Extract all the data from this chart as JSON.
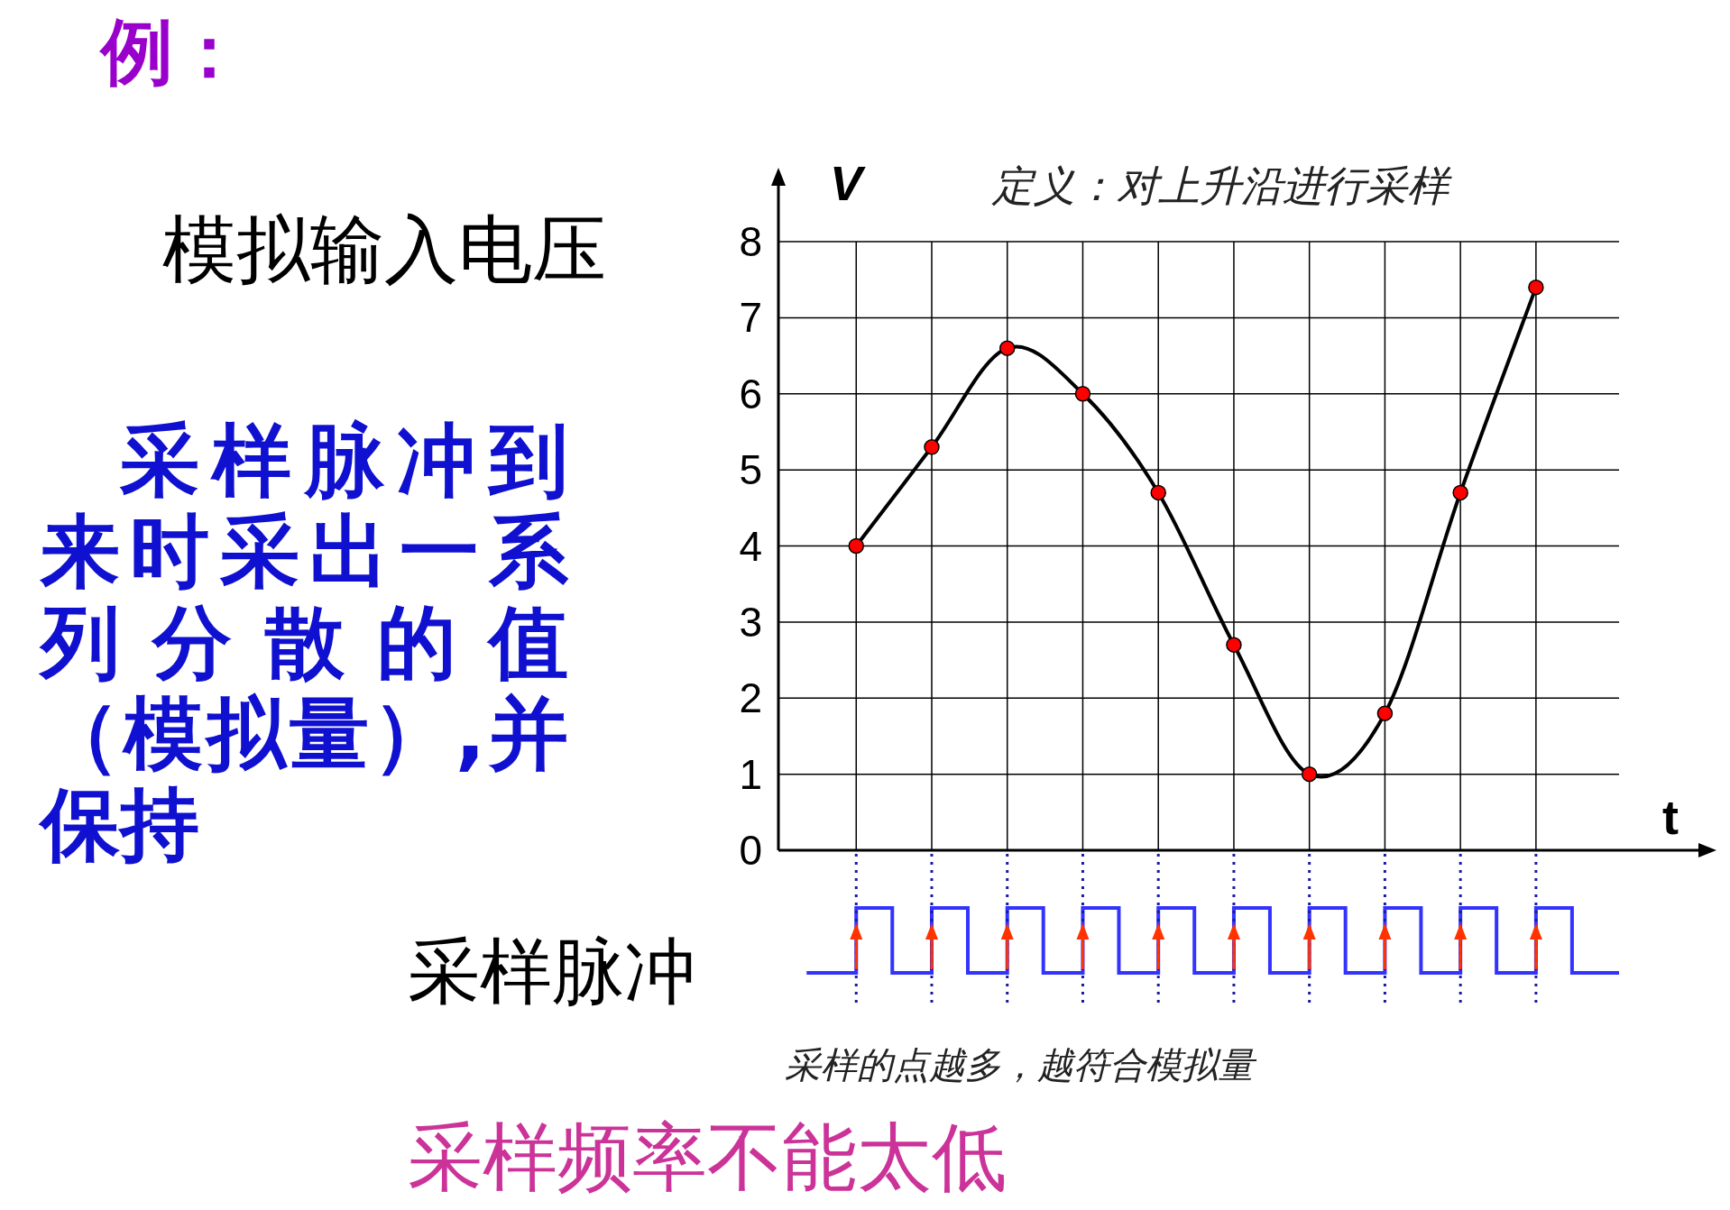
{
  "chart_data": {
    "type": "line",
    "title": "例：",
    "xlabel": "t",
    "ylabel": "V",
    "categories": [
      null,
      null,
      null,
      null,
      null,
      null,
      null,
      null,
      null,
      null
    ],
    "series": [
      {
        "color": "#000000",
        "marker": "none",
        "values": [
          4.0,
          5.3,
          6.6,
          6.0,
          4.7,
          2.7,
          1.0,
          1.8,
          4.7,
          7.4
        ]
      },
      {
        "type": "scatter",
        "color": "#ff0000",
        "marker": "circle",
        "values": [
          4.0,
          5.3,
          6.6,
          6.0,
          4.7,
          2.7,
          1.0,
          1.8,
          4.7,
          7.4
        ]
      }
    ],
    "ylim": [
      0,
      8
    ],
    "yticks": [
      0,
      1,
      2,
      3,
      4,
      5,
      6,
      7,
      8
    ],
    "grid": true,
    "annotations": [
      "模拟输入电压",
      "采样脉冲到来时采出一系列分散的值（模拟量）,并保持",
      "采样脉冲",
      "定义：对上升沿进行采样",
      "采样的点越多，越符合模拟量",
      "采样频率不能太低"
    ]
  }
}
